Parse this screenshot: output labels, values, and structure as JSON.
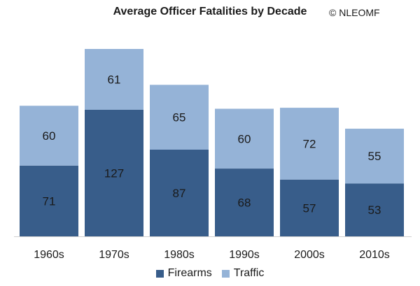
{
  "chart_data": {
    "type": "bar",
    "stacked": true,
    "title": "Average Officer Fatalities by Decade",
    "subtitle": "© NLEOMF",
    "categories": [
      "1960s",
      "1970s",
      "1980s",
      "1990s",
      "2000s",
      "2010s"
    ],
    "series": [
      {
        "name": "Firearms",
        "values": [
          71,
          127,
          87,
          68,
          57,
          53
        ],
        "color": "#385d8a"
      },
      {
        "name": "Traffic",
        "values": [
          60,
          61,
          65,
          60,
          72,
          55
        ],
        "color": "#95b3d7"
      }
    ],
    "xlabel": "",
    "ylabel": "",
    "ylim": [
      0,
      188
    ],
    "grid": false,
    "legend_position": "bottom"
  }
}
